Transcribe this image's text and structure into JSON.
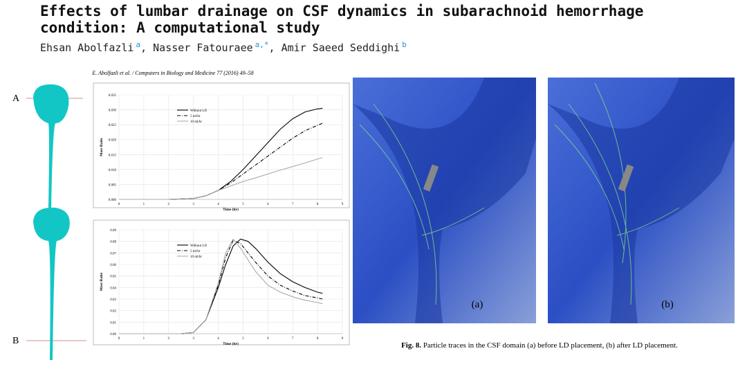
{
  "header": {
    "title": "Effects of lumbar drainage on CSF dynamics in subarachnoid hemorrhage condition: A computational study",
    "authors": [
      {
        "name": "Ehsan Abolfazli",
        "affiliation": "a"
      },
      {
        "name": "Nasser Fatouraee",
        "affiliation": "a,*"
      },
      {
        "name": "Amir Saeed Seddighi",
        "affiliation": "b"
      }
    ]
  },
  "figure": {
    "journal_line": "E. Abolfazli et al. / Computers in Biology and Medicine 77 (2016) 49–58",
    "section_labels": [
      "A",
      "B"
    ],
    "panel_labels": [
      "(a)",
      "(b)"
    ],
    "caption": {
      "label": "Fig. 8.",
      "text": "Particle traces in the CSF domain (a) before LD placement, (b) after LD placement."
    }
  },
  "chart_data": [
    {
      "type": "line",
      "xlabel": "Time (hr)",
      "ylabel": "Mass Ratio",
      "x": [
        0,
        1,
        2,
        3,
        3.5,
        4,
        4.5,
        5,
        5.5,
        6,
        6.5,
        7,
        7.5,
        8,
        8.2
      ],
      "series": [
        {
          "name": "Without LD",
          "color": "#000000",
          "dash": "solid",
          "values": [
            0,
            0,
            0,
            0.0003,
            0.0012,
            0.003,
            0.006,
            0.01,
            0.0145,
            0.019,
            0.0235,
            0.027,
            0.0293,
            0.0303,
            0.0305
          ]
        },
        {
          "name": "5 ml/hr",
          "color": "#000000",
          "dash": "dashdot",
          "values": [
            0,
            0,
            0,
            0.0003,
            0.0012,
            0.003,
            0.0055,
            0.0085,
            0.0115,
            0.0145,
            0.0175,
            0.0205,
            0.023,
            0.0248,
            0.0255
          ]
        },
        {
          "name": "10 ml/hr",
          "color": "#aaaaaa",
          "dash": "solid",
          "values": [
            0,
            0,
            0,
            0.0003,
            0.0012,
            0.003,
            0.0045,
            0.006,
            0.0072,
            0.0085,
            0.0098,
            0.011,
            0.0122,
            0.0135,
            0.014
          ]
        }
      ],
      "xlim": [
        0,
        9
      ],
      "xticks": [
        0,
        1,
        2,
        3,
        4,
        5,
        6,
        7,
        8,
        9
      ],
      "ylim": [
        0,
        0.035
      ],
      "yticks": [
        {
          "value": 0,
          "label": "0.000"
        },
        {
          "value": 0.005,
          "label": "0.005"
        },
        {
          "value": 0.01,
          "label": "0.010"
        },
        {
          "value": 0.015,
          "label": "0.015"
        },
        {
          "value": 0.02,
          "label": "0.020"
        },
        {
          "value": 0.025,
          "label": "0.025"
        },
        {
          "value": 0.03,
          "label": "0.030"
        },
        {
          "value": 0.035,
          "label": "0.035"
        }
      ],
      "grid": true
    },
    {
      "type": "line",
      "xlabel": "Time (hr)",
      "ylabel": "Mass Ratio",
      "x": [
        0,
        1,
        2,
        2.5,
        3,
        3.5,
        4,
        4.3,
        4.6,
        4.9,
        5.2,
        5.5,
        6,
        6.5,
        7,
        7.5,
        8,
        8.2
      ],
      "series": [
        {
          "name": "Without LD",
          "color": "#000000",
          "dash": "solid",
          "values": [
            0,
            0,
            0,
            0,
            0.001,
            0.012,
            0.04,
            0.06,
            0.076,
            0.082,
            0.08,
            0.074,
            0.062,
            0.052,
            0.045,
            0.04,
            0.036,
            0.035
          ]
        },
        {
          "name": "5 ml/hr",
          "color": "#000000",
          "dash": "dashdot",
          "values": [
            0,
            0,
            0,
            0,
            0.001,
            0.012,
            0.042,
            0.066,
            0.081,
            0.078,
            0.07,
            0.062,
            0.05,
            0.042,
            0.037,
            0.033,
            0.031,
            0.03
          ]
        },
        {
          "name": "10 ml/hr",
          "color": "#aaaaaa",
          "dash": "solid",
          "values": [
            0,
            0,
            0,
            0,
            0.001,
            0.012,
            0.044,
            0.07,
            0.082,
            0.074,
            0.064,
            0.054,
            0.042,
            0.036,
            0.032,
            0.029,
            0.027,
            0.026
          ]
        }
      ],
      "xlim": [
        0,
        9
      ],
      "xticks": [
        0,
        1,
        2,
        3,
        4,
        5,
        6,
        7,
        8,
        9
      ],
      "ylim": [
        0,
        0.09
      ],
      "yticks": [
        {
          "value": 0,
          "label": "0.00"
        },
        {
          "value": 0.01,
          "label": "0.01"
        },
        {
          "value": 0.02,
          "label": "0.02"
        },
        {
          "value": 0.03,
          "label": "0.03"
        },
        {
          "value": 0.04,
          "label": "0.04"
        },
        {
          "value": 0.05,
          "label": "0.05"
        },
        {
          "value": 0.06,
          "label": "0.06"
        },
        {
          "value": 0.07,
          "label": "0.07"
        },
        {
          "value": 0.08,
          "label": "0.08"
        },
        {
          "value": 0.09,
          "label": "0.09"
        }
      ],
      "grid": true
    }
  ]
}
